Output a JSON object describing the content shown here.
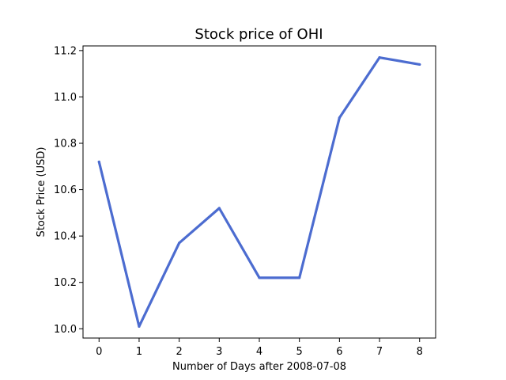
{
  "chart_data": {
    "type": "line",
    "title": "Stock price of OHI",
    "xlabel": "Number of Days after 2008-07-08",
    "ylabel": "Stock Price (USD)",
    "x": [
      0,
      1,
      2,
      3,
      4,
      5,
      6,
      7,
      8
    ],
    "series": [
      {
        "values": [
          10.72,
          10.01,
          10.37,
          10.52,
          10.22,
          10.22,
          10.91,
          11.17,
          11.14
        ],
        "color": "#4c6cd0"
      }
    ],
    "xlim": [
      -0.4,
      8.4
    ],
    "ylim": [
      9.96,
      11.22
    ],
    "xticks": [
      0,
      1,
      2,
      3,
      4,
      5,
      6,
      7,
      8
    ],
    "xtick_labels": [
      "0",
      "1",
      "2",
      "3",
      "4",
      "5",
      "6",
      "7",
      "8"
    ],
    "yticks": [
      10.0,
      10.2,
      10.4,
      10.6,
      10.8,
      11.0,
      11.2
    ],
    "ytick_labels": [
      "10.0",
      "10.2",
      "10.4",
      "10.6",
      "10.8",
      "11.0",
      "11.2"
    ],
    "grid": false,
    "legend": "none"
  }
}
